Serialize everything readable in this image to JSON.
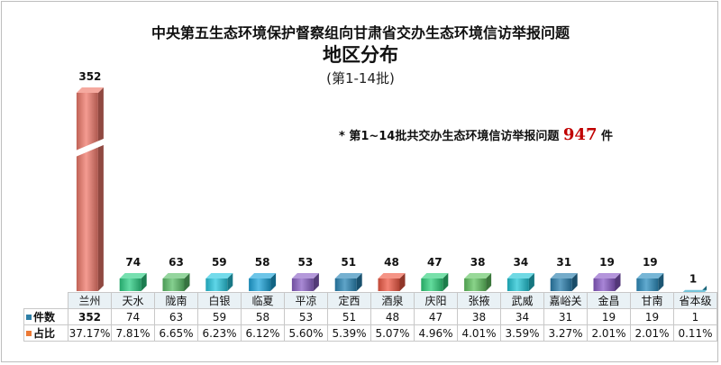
{
  "title": {
    "line1": "中央第五生态环境保护督察组向甘肃省交办生态环境信访举报问题",
    "line2": "地区分布",
    "line3": "(第1-14批)"
  },
  "note": {
    "prefix": "*  第1~14批共交办生态环境信访举报问题",
    "total": "947",
    "suffix": "件"
  },
  "chart_data": {
    "type": "bar",
    "categories": [
      "兰州",
      "天水",
      "陇南",
      "白银",
      "临夏",
      "平凉",
      "定西",
      "酒泉",
      "庆阳",
      "张掖",
      "武威",
      "嘉峪关",
      "金昌",
      "甘南",
      "省本级"
    ],
    "series": [
      {
        "name": "件数",
        "values": [
          352,
          74,
          63,
          59,
          58,
          53,
          51,
          48,
          47,
          38,
          34,
          31,
          19,
          19,
          1
        ]
      }
    ],
    "value_labels": [
      "352",
      "74",
      "63",
      "59",
      "58",
      "53",
      "51",
      "48",
      "47",
      "38",
      "34",
      "31",
      "19",
      "19",
      "1"
    ],
    "axis_break": {
      "broken_category": "兰州"
    },
    "colors": [
      "#f07a6c",
      "#2ecf86",
      "#5cbf6a",
      "#29c8e0",
      "#1ea6dc",
      "#8b62c6",
      "#2a86b6",
      "#f05a45",
      "#2fd07c",
      "#62c462",
      "#23c5d6",
      "#2a7fae",
      "#8b5cc8",
      "#2e8fc0",
      "#2aa6c8"
    ],
    "legend_position": "bottom-left"
  },
  "table": {
    "rows": [
      {
        "label": "件数",
        "color": "#2e7fa6",
        "values": [
          "352",
          "74",
          "63",
          "59",
          "58",
          "53",
          "51",
          "48",
          "47",
          "38",
          "34",
          "31",
          "19",
          "19",
          "1"
        ]
      },
      {
        "label": "占比",
        "color": "#ec7a35",
        "values": [
          "37.17%",
          "7.81%",
          "6.65%",
          "6.23%",
          "6.12%",
          "5.60%",
          "5.39%",
          "5.07%",
          "4.96%",
          "4.01%",
          "3.59%",
          "3.27%",
          "2.01%",
          "2.01%",
          "0.11%"
        ]
      }
    ]
  }
}
